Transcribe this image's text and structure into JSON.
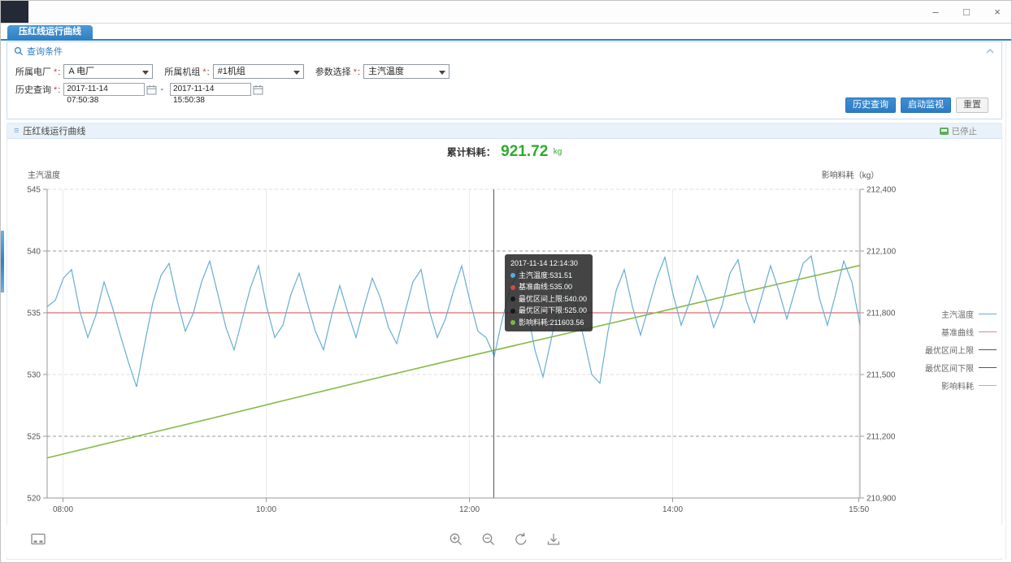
{
  "window": {
    "controls": {
      "minimize": "–",
      "maximize": "□",
      "close": "×"
    }
  },
  "tab": {
    "label": "压红线运行曲线"
  },
  "query_panel": {
    "header": "查询条件",
    "fields": {
      "plant": {
        "label": "所属电厂",
        "star": "*",
        "colon": ":",
        "value": "A 电厂"
      },
      "unit": {
        "label": "所属机组",
        "star": "*",
        "colon": ":",
        "value": "#1机组"
      },
      "param": {
        "label": "参数选择",
        "star": "*",
        "colon": ":",
        "value": "主汽温度"
      },
      "history": {
        "label": "历史查询",
        "star": "*",
        "colon": ":",
        "start": "2017-11-14 07:50:38",
        "separator": "-",
        "end": "2017-11-14 15:50:38"
      }
    },
    "buttons": {
      "history_query": "历史查询",
      "start_monitor": "启动监视",
      "reset": "重置"
    }
  },
  "chart_panel": {
    "header": "压红线运行曲线",
    "status": "已停止",
    "total_label": "累计料耗：",
    "total_value": "921.72",
    "total_unit": "kg"
  },
  "tooltip": {
    "title": "2017-11-14 12:14:30",
    "rows": [
      {
        "text": "主汽温度:531.51",
        "color": "#54aede"
      },
      {
        "text": "基准曲线:535.00",
        "color": "#d04a4a"
      },
      {
        "text": "最优区间上限:540.00",
        "color": "#15181c"
      },
      {
        "text": "最优区间下限:525.00",
        "color": "#15181c"
      },
      {
        "text": "影响料耗:211603.56",
        "color": "#7cb83e"
      }
    ]
  },
  "toolbar": {
    "icons": [
      "data-view",
      "zoom-in",
      "zoom-out",
      "refresh",
      "download"
    ]
  },
  "chart_data": {
    "type": "line",
    "x": {
      "start": "07:50:38",
      "end": "15:50:38",
      "ticks": [
        {
          "label": "08:00",
          "f": 0.0195
        },
        {
          "label": "10:00",
          "f": 0.2695
        },
        {
          "label": "12:00",
          "f": 0.5195
        },
        {
          "label": "14:00",
          "f": 0.7695
        },
        {
          "label": "15:50",
          "f": 0.9987
        }
      ]
    },
    "y_left": {
      "label": "主汽温度",
      "min": 520,
      "max": 545,
      "ticks": [
        545,
        540,
        535,
        530,
        525,
        520
      ]
    },
    "y_right": {
      "label": "影响料耗（kg）",
      "min": 210900,
      "max": 212400,
      "ticks": [
        "212,400",
        "212,100",
        "211,800",
        "211,500",
        "211,200",
        "210,900"
      ]
    },
    "crosshair_fraction": 0.5497,
    "series": [
      {
        "name": "最优区间上限",
        "axis": "left",
        "color": "#9a9a9a",
        "dash": "4 3",
        "width": 1,
        "values": [
          540,
          540
        ]
      },
      {
        "name": "最优区间下限",
        "axis": "left",
        "color": "#9a9a9a",
        "dash": "4 3",
        "width": 1,
        "values": [
          525,
          525
        ]
      },
      {
        "name": "基准曲线",
        "axis": "left",
        "color": "#cf4a4a",
        "dash": "",
        "width": 1,
        "values": [
          535,
          535
        ]
      },
      {
        "name": "影响料耗",
        "axis": "right",
        "color": "#85b945",
        "dash": "",
        "width": 1.6,
        "values": [
          211095,
          211190,
          211285,
          211382,
          211478,
          211572,
          211664,
          211755,
          211848,
          211940,
          212030
        ]
      },
      {
        "name": "主汽温度",
        "axis": "left",
        "color": "#66aed0",
        "dash": "",
        "width": 1.2,
        "values": [
          535.5,
          536.0,
          537.8,
          538.5,
          535.2,
          533.0,
          534.8,
          537.5,
          535.5,
          533.2,
          531.0,
          529.0,
          532.5,
          535.8,
          538.0,
          539.0,
          536.0,
          533.5,
          535.0,
          537.5,
          539.2,
          536.5,
          533.8,
          532.0,
          534.5,
          537.0,
          538.8,
          535.5,
          533.0,
          534.0,
          536.5,
          538.2,
          535.8,
          533.5,
          532.0,
          534.8,
          537.2,
          535.0,
          533.0,
          535.5,
          537.8,
          536.2,
          533.8,
          532.5,
          535.0,
          537.5,
          538.5,
          535.2,
          533.0,
          534.5,
          536.8,
          538.8,
          536.0,
          533.5,
          533.0,
          531.5,
          534.5,
          537.0,
          538.5,
          535.5,
          532.0,
          529.8,
          532.8,
          536.0,
          538.2,
          535.8,
          533.0,
          530.0,
          529.3,
          533.5,
          536.8,
          538.5,
          535.5,
          533.2,
          535.5,
          537.8,
          539.5,
          536.5,
          534.0,
          535.8,
          538.0,
          536.2,
          533.8,
          535.5,
          538.2,
          539.3,
          536.0,
          534.2,
          536.5,
          538.8,
          536.8,
          534.5,
          536.8,
          539.0,
          539.6,
          536.2,
          534.0,
          536.5,
          539.2,
          537.5,
          534.0
        ]
      }
    ],
    "legend": [
      {
        "label": "主汽温度",
        "color": "#66aed0"
      },
      {
        "label": "基准曲线",
        "color": "#d98a8a"
      },
      {
        "label": "最优区间上限",
        "color": "#555555"
      },
      {
        "label": "最优区间下限",
        "color": "#555555"
      },
      {
        "label": "影响料耗",
        "color": "#9cc96c"
      }
    ]
  }
}
